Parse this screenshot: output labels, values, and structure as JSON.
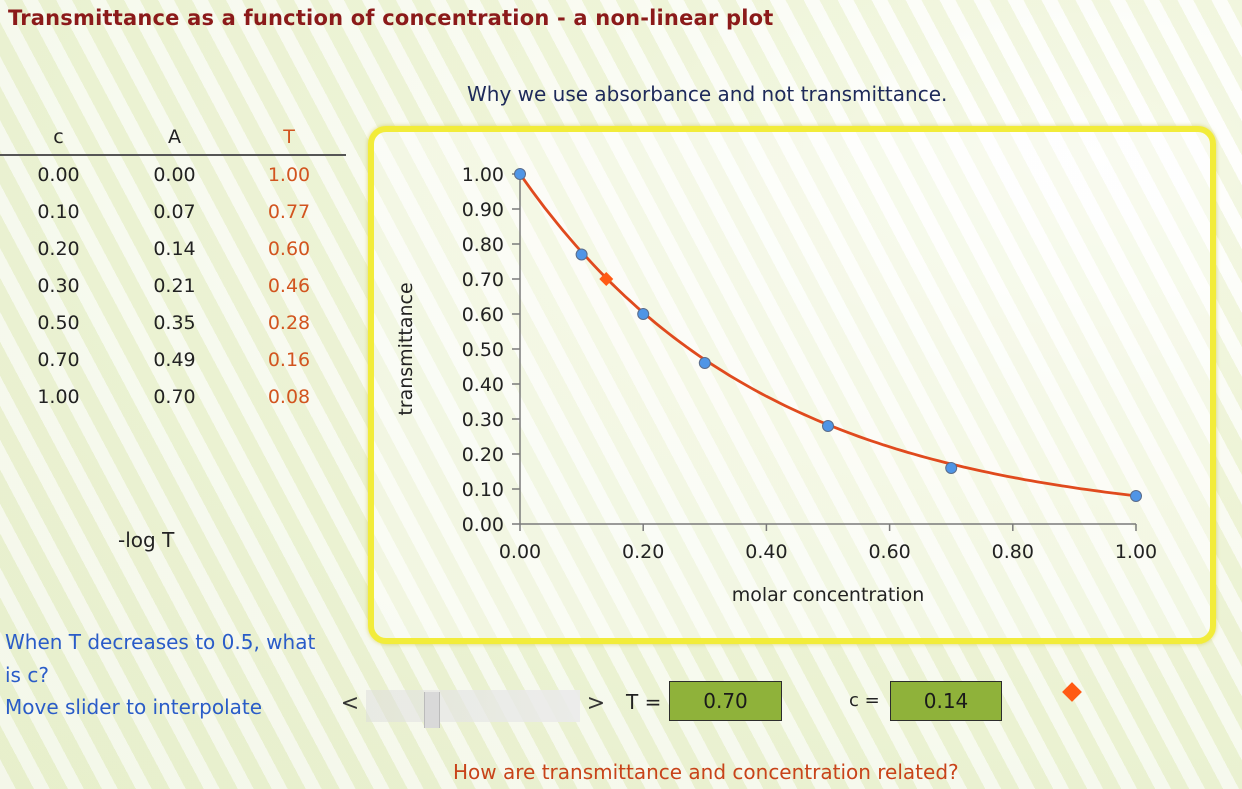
{
  "page": {
    "title": "Transmittance as a function of concentration  -  a non-linear plot",
    "subtitle": "Why we use absorbance and not transmittance.",
    "bottom_link": "How are transmittance and concentration related?"
  },
  "table": {
    "headers": {
      "c": "c",
      "a": "A",
      "t": "T"
    },
    "rows": [
      {
        "c": "0.00",
        "a": "0.00",
        "t": "1.00"
      },
      {
        "c": "0.10",
        "a": "0.07",
        "t": "0.77"
      },
      {
        "c": "0.20",
        "a": "0.14",
        "t": "0.60"
      },
      {
        "c": "0.30",
        "a": "0.21",
        "t": "0.46"
      },
      {
        "c": "0.50",
        "a": "0.35",
        "t": "0.28"
      },
      {
        "c": "0.70",
        "a": "0.49",
        "t": "0.16"
      },
      {
        "c": "1.00",
        "a": "0.70",
        "t": "0.08"
      }
    ],
    "formula": "-log T"
  },
  "prompt": {
    "question": "When T decreases to 0.5, what is c?",
    "instruction": "Move slider to interpolate"
  },
  "controls": {
    "slider_left": "<",
    "slider_right": ">",
    "slider_value": 0.29,
    "t_label": "T =",
    "t_value": "0.70",
    "c_label": "c =",
    "c_value": "0.14"
  },
  "colors": {
    "curve": "#e04a1e",
    "points": "#4f95e6",
    "marker": "#ff5a14",
    "frame": "#f2ec3a",
    "value_box": "#8fb23a"
  },
  "chart_data": {
    "type": "scatter",
    "xlabel": "molar concentration",
    "ylabel": "transmittance",
    "xlim": [
      0,
      1
    ],
    "ylim": [
      0,
      1
    ],
    "x_ticks": [
      "0.00",
      "0.20",
      "0.40",
      "0.60",
      "0.80",
      "1.00"
    ],
    "y_ticks": [
      "0.00",
      "0.10",
      "0.20",
      "0.30",
      "0.40",
      "0.50",
      "0.60",
      "0.70",
      "0.80",
      "0.90",
      "1.00"
    ],
    "grid": false,
    "series": [
      {
        "x": [
          0.0,
          0.1,
          0.2,
          0.3,
          0.5,
          0.7,
          1.0
        ],
        "y": [
          1.0,
          0.77,
          0.6,
          0.46,
          0.28,
          0.16,
          0.08
        ]
      }
    ],
    "curve": {
      "type": "exponential",
      "T0": 1.0,
      "k": 2.52
    },
    "marker": {
      "x": 0.14,
      "y": 0.7
    }
  }
}
